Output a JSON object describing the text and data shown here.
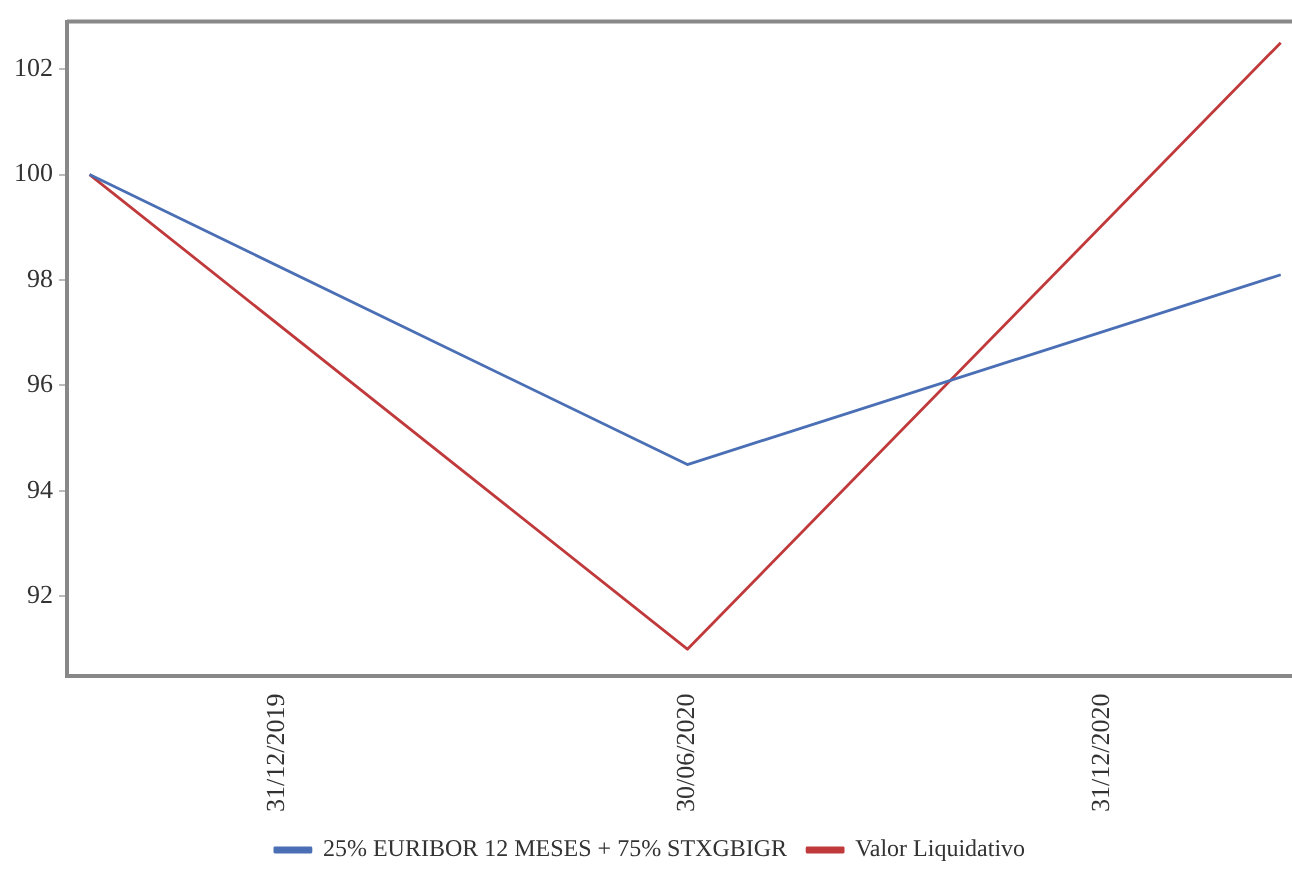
{
  "chart_data": {
    "type": "line",
    "x": [
      "2019-10-09",
      "2020-06-30",
      "2021-03-20"
    ],
    "series": [
      {
        "name": "25% EURIBOR 12 MESES + 75% STXGBIGR",
        "color": "#4a6fb5",
        "values": [
          100,
          94.5,
          98.1
        ]
      },
      {
        "name": "Valor Liquidativo",
        "color": "#c0393b",
        "values": [
          100,
          91.0,
          102.5
        ]
      }
    ],
    "xlim": [
      "2019-09-29",
      "2021-03-25"
    ],
    "xticks": [
      {
        "value": "2019-12-31",
        "label": "31/12/2019"
      },
      {
        "value": "2020-06-30",
        "label": "30/06/2020"
      },
      {
        "value": "2020-12-31",
        "label": "31/12/2020"
      }
    ],
    "ylim": [
      90.5,
      102.9
    ],
    "yticks": [
      92,
      94,
      96,
      98,
      100,
      102
    ],
    "grid": false,
    "legend": "bottom",
    "marker": "none",
    "line_style": "solid"
  }
}
